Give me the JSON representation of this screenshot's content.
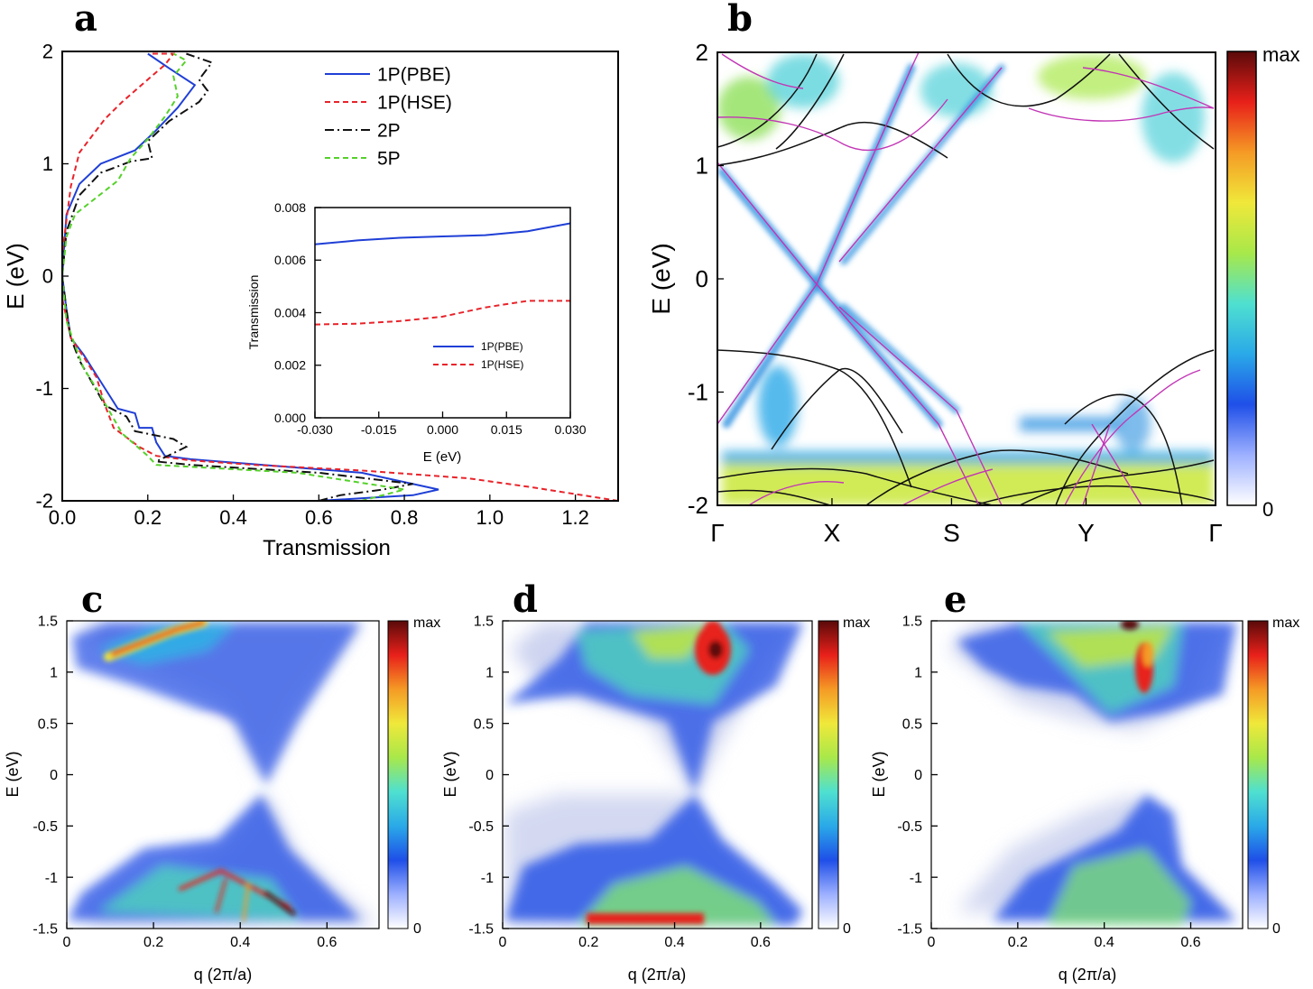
{
  "panels": {
    "a": "a",
    "b": "b",
    "c": "c",
    "d": "d",
    "e": "e"
  },
  "colors": {
    "pbe": "#1f3fd6",
    "hse": "#e8232a",
    "p2": "#111111",
    "p5": "#55d12a",
    "band_black": "#111111",
    "band_magenta": "#c235b5"
  },
  "colorbar": {
    "max_label": "max",
    "min_label": "0",
    "stops": [
      "#ffffff",
      "#9db0ff",
      "#1f4fe8",
      "#2aa9e8",
      "#4fe0d0",
      "#a8e84a",
      "#f0e83a",
      "#f59a25",
      "#e8201a",
      "#5a0a0a"
    ]
  },
  "chart_data": [
    {
      "id": "a",
      "type": "line",
      "xlabel": "Transmission",
      "ylabel": "E (eV)",
      "xlim": [
        0.0,
        1.3
      ],
      "ylim": [
        -2,
        2
      ],
      "xticks": [
        "0.0",
        "0.2",
        "0.4",
        "0.6",
        "0.8",
        "1.0",
        "1.2"
      ],
      "xtick_values": [
        0.0,
        0.2,
        0.4,
        0.6,
        0.8,
        1.0,
        1.2
      ],
      "yticks": [
        "-2",
        "-1",
        "0",
        "1",
        "2"
      ],
      "ytick_values": [
        -2,
        -1,
        0,
        1,
        2
      ],
      "series": [
        {
          "name": "1P(PBE)",
          "style": "solid",
          "color_key": "pbe",
          "points": [
            [
              0.6,
              -2.0
            ],
            [
              0.82,
              -1.95
            ],
            [
              0.88,
              -1.9
            ],
            [
              0.7,
              -1.75
            ],
            [
              0.3,
              -1.63
            ],
            [
              0.24,
              -1.6
            ],
            [
              0.22,
              -1.48
            ],
            [
              0.21,
              -1.35
            ],
            [
              0.18,
              -1.35
            ],
            [
              0.17,
              -1.22
            ],
            [
              0.13,
              -1.18
            ],
            [
              0.1,
              -1.0
            ],
            [
              0.07,
              -0.82
            ],
            [
              0.05,
              -0.7
            ],
            [
              0.02,
              -0.55
            ],
            [
              0.01,
              -0.3
            ],
            [
              0.0,
              0.0
            ],
            [
              0.005,
              0.3
            ],
            [
              0.01,
              0.55
            ],
            [
              0.04,
              0.82
            ],
            [
              0.09,
              1.0
            ],
            [
              0.17,
              1.12
            ],
            [
              0.22,
              1.3
            ],
            [
              0.27,
              1.5
            ],
            [
              0.31,
              1.7
            ],
            [
              0.25,
              1.85
            ],
            [
              0.2,
              1.98
            ]
          ]
        },
        {
          "name": "1P(HSE)",
          "style": "dashed",
          "color_key": "hse",
          "points": [
            [
              1.3,
              -2.0
            ],
            [
              1.1,
              -1.88
            ],
            [
              0.95,
              -1.8
            ],
            [
              0.7,
              -1.73
            ],
            [
              0.45,
              -1.68
            ],
            [
              0.3,
              -1.64
            ],
            [
              0.22,
              -1.6
            ],
            [
              0.18,
              -1.52
            ],
            [
              0.12,
              -1.35
            ],
            [
              0.1,
              -1.15
            ],
            [
              0.08,
              -0.9
            ],
            [
              0.05,
              -0.72
            ],
            [
              0.02,
              -0.55
            ],
            [
              0.0,
              -0.2
            ],
            [
              0.0,
              0.2
            ],
            [
              0.01,
              0.5
            ],
            [
              0.02,
              0.8
            ],
            [
              0.04,
              1.1
            ],
            [
              0.1,
              1.4
            ],
            [
              0.14,
              1.55
            ],
            [
              0.2,
              1.75
            ],
            [
              0.24,
              1.88
            ],
            [
              0.26,
              1.98
            ],
            [
              0.21,
              1.98
            ]
          ]
        },
        {
          "name": "2P",
          "style": "dashdot",
          "color_key": "p2",
          "points": [
            [
              0.6,
              -2.0
            ],
            [
              0.65,
              -1.95
            ],
            [
              0.75,
              -1.9
            ],
            [
              0.82,
              -1.85
            ],
            [
              0.6,
              -1.75
            ],
            [
              0.3,
              -1.68
            ],
            [
              0.22,
              -1.65
            ],
            [
              0.29,
              -1.52
            ],
            [
              0.26,
              -1.45
            ],
            [
              0.17,
              -1.38
            ],
            [
              0.15,
              -1.25
            ],
            [
              0.1,
              -1.15
            ],
            [
              0.07,
              -0.95
            ],
            [
              0.04,
              -0.75
            ],
            [
              0.02,
              -0.55
            ],
            [
              0.01,
              -0.3
            ],
            [
              0.0,
              0.0
            ],
            [
              0.01,
              0.4
            ],
            [
              0.04,
              0.72
            ],
            [
              0.09,
              0.92
            ],
            [
              0.16,
              1.02
            ],
            [
              0.21,
              1.05
            ],
            [
              0.2,
              1.2
            ],
            [
              0.25,
              1.38
            ],
            [
              0.32,
              1.55
            ],
            [
              0.34,
              1.65
            ],
            [
              0.32,
              1.75
            ],
            [
              0.35,
              1.9
            ],
            [
              0.29,
              1.98
            ]
          ]
        },
        {
          "name": "5P",
          "style": "dashed",
          "color_key": "p5",
          "points": [
            [
              0.7,
              -2.0
            ],
            [
              0.8,
              -1.9
            ],
            [
              0.55,
              -1.75
            ],
            [
              0.22,
              -1.68
            ],
            [
              0.2,
              -1.6
            ],
            [
              0.17,
              -1.5
            ],
            [
              0.14,
              -1.4
            ],
            [
              0.11,
              -1.2
            ],
            [
              0.08,
              -1.0
            ],
            [
              0.05,
              -0.82
            ],
            [
              0.03,
              -0.62
            ],
            [
              0.01,
              -0.4
            ],
            [
              0.0,
              0.0
            ],
            [
              0.01,
              0.35
            ],
            [
              0.03,
              0.55
            ],
            [
              0.08,
              0.7
            ],
            [
              0.13,
              0.85
            ],
            [
              0.16,
              1.05
            ],
            [
              0.2,
              1.22
            ],
            [
              0.24,
              1.42
            ],
            [
              0.27,
              1.6
            ],
            [
              0.26,
              1.78
            ],
            [
              0.29,
              1.92
            ],
            [
              0.26,
              1.98
            ]
          ]
        }
      ],
      "legend": {
        "placement": "top-right",
        "entries": [
          "1P(PBE)",
          "1P(HSE)",
          "2P",
          "5P"
        ]
      },
      "inset": {
        "type": "line",
        "xlabel": "E (eV)",
        "ylabel": "Transmission",
        "xlim": [
          -0.03,
          0.03
        ],
        "ylim": [
          0.0,
          0.008
        ],
        "xticks": [
          "-0.030",
          "-0.015",
          "0.000",
          "0.015",
          "0.030"
        ],
        "xtick_values": [
          -0.03,
          -0.015,
          0.0,
          0.015,
          0.03
        ],
        "yticks": [
          "0.000",
          "0.002",
          "0.004",
          "0.006",
          "0.008"
        ],
        "ytick_values": [
          0.0,
          0.002,
          0.004,
          0.006,
          0.008
        ],
        "series": [
          {
            "name": "1P(PBE)",
            "style": "solid",
            "color_key": "pbe",
            "points": [
              [
                -0.03,
                0.0066
              ],
              [
                -0.02,
                0.00675
              ],
              [
                -0.01,
                0.00685
              ],
              [
                0.0,
                0.0069
              ],
              [
                0.01,
                0.00695
              ],
              [
                0.02,
                0.0071
              ],
              [
                0.03,
                0.0074
              ]
            ]
          },
          {
            "name": "1P(HSE)",
            "style": "dashed",
            "color_key": "hse",
            "points": [
              [
                -0.03,
                0.00355
              ],
              [
                -0.02,
                0.00358
              ],
              [
                -0.01,
                0.00368
              ],
              [
                0.0,
                0.00385
              ],
              [
                0.01,
                0.0042
              ],
              [
                0.02,
                0.00445
              ],
              [
                0.03,
                0.00445
              ]
            ]
          }
        ],
        "legend": {
          "placement": "bottom-right",
          "entries": [
            "1P(PBE)",
            "1P(HSE)"
          ]
        }
      }
    },
    {
      "id": "b",
      "type": "heatmap",
      "ylabel": "E (eV)",
      "ylim": [
        -2,
        2
      ],
      "yticks": [
        "-2",
        "-1",
        "0",
        "1",
        "2"
      ],
      "ytick_values": [
        -2,
        -1,
        0,
        1,
        2
      ],
      "kpoints": [
        "Γ",
        "X",
        "S",
        "Y",
        "Γ"
      ],
      "kpoint_positions": [
        0.0,
        0.23,
        0.47,
        0.74,
        1.0
      ],
      "colorbar": {
        "max": "max",
        "min": "0"
      },
      "dirac_crossing_eV": 0.0
    },
    {
      "id": "c",
      "type": "heatmap",
      "xlabel": "q (2π/a)",
      "ylabel": "E (eV)",
      "xlim": [
        0,
        0.72
      ],
      "ylim": [
        -1.5,
        1.5
      ],
      "xticks": [
        "0",
        "0.2",
        "0.4",
        "0.6"
      ],
      "xtick_values": [
        0,
        0.2,
        0.4,
        0.6
      ],
      "yticks": [
        "-1.5",
        "-1",
        "-0.5",
        "0",
        "0.5",
        "1",
        "1.5"
      ],
      "ytick_values": [
        -1.5,
        -1,
        -0.5,
        0,
        0.5,
        1,
        1.5
      ],
      "colorbar": {
        "max": "max",
        "min": "0"
      }
    },
    {
      "id": "d",
      "type": "heatmap",
      "xlabel": "q (2π/a)",
      "ylabel": "E (eV)",
      "xlim": [
        0,
        0.72
      ],
      "ylim": [
        -1.5,
        1.5
      ],
      "xticks": [
        "0",
        "0.2",
        "0.4",
        "0.6"
      ],
      "xtick_values": [
        0,
        0.2,
        0.4,
        0.6
      ],
      "yticks": [
        "-1.5",
        "-1",
        "-0.5",
        "0",
        "0.5",
        "1",
        "1.5"
      ],
      "ytick_values": [
        -1.5,
        -1,
        -0.5,
        0,
        0.5,
        1,
        1.5
      ],
      "colorbar": {
        "max": "max",
        "min": "0"
      }
    },
    {
      "id": "e",
      "type": "heatmap",
      "xlabel": "q (2π/a)",
      "ylabel": "E (eV)",
      "xlim": [
        0,
        0.72
      ],
      "ylim": [
        -1.5,
        1.5
      ],
      "xticks": [
        "0",
        "0.2",
        "0.4",
        "0.6"
      ],
      "xtick_values": [
        0,
        0.2,
        0.4,
        0.6
      ],
      "yticks": [
        "-1.5",
        "-1",
        "-0.5",
        "0",
        "0.5",
        "1",
        "1.5"
      ],
      "ytick_values": [
        -1.5,
        -1,
        -0.5,
        0,
        0.5,
        1,
        1.5
      ],
      "colorbar": {
        "max": "max",
        "min": "0"
      }
    }
  ]
}
